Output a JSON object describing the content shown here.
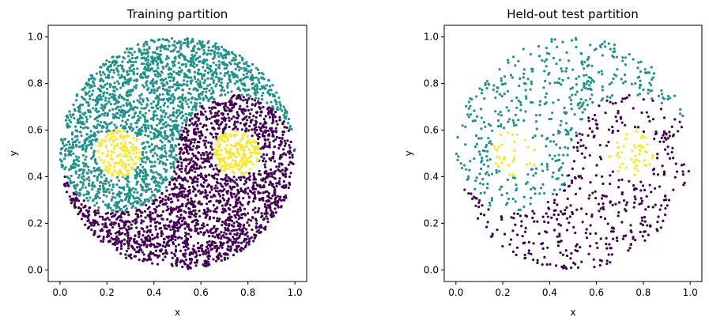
{
  "chart_data": [
    {
      "type": "scatter",
      "title": "Training partition",
      "xlabel": "x",
      "ylabel": "y",
      "xlim": [
        -0.05,
        1.05
      ],
      "ylim": [
        -0.05,
        1.05
      ],
      "xticks": [
        "0.0",
        "0.2",
        "0.4",
        "0.6",
        "0.8",
        "1.0"
      ],
      "yticks": [
        "0.0",
        "0.2",
        "0.4",
        "0.6",
        "0.8",
        "1.0"
      ],
      "grid": false,
      "n_points": 4500,
      "classes": [
        {
          "color": "#440154",
          "region": "lower half of yin-yang disk (center 0.5,0.5, radius 0.5) with the small circle at (0.25,0.5) radius 0.1"
        },
        {
          "color": "#21918c",
          "region": "upper half of yin-yang disk with the small circle at (0.75,0.5) radius 0.1"
        },
        {
          "color": "#fde725",
          "region": "dots at (0.25,0.5) and (0.75,0.5), radius 0.1"
        }
      ]
    },
    {
      "type": "scatter",
      "title": "Held-out test partition",
      "xlabel": "x",
      "ylabel": "y",
      "xlim": [
        -0.05,
        1.05
      ],
      "ylim": [
        -0.05,
        1.05
      ],
      "xticks": [
        "0.0",
        "0.2",
        "0.4",
        "0.6",
        "0.8",
        "1.0"
      ],
      "yticks": [
        "0.0",
        "0.2",
        "0.4",
        "0.6",
        "0.8",
        "1.0"
      ],
      "grid": false,
      "n_points": 1000,
      "classes": [
        {
          "color": "#440154",
          "region": "lower half of yin-yang disk (center 0.5,0.5, radius 0.5) with the small circle at (0.25,0.5) radius 0.1"
        },
        {
          "color": "#21918c",
          "region": "upper half of yin-yang disk with the small circle at (0.75,0.5) radius 0.1"
        },
        {
          "color": "#fde725",
          "region": "dots at (0.25,0.5) and (0.75,0.5), radius 0.1"
        }
      ]
    }
  ]
}
